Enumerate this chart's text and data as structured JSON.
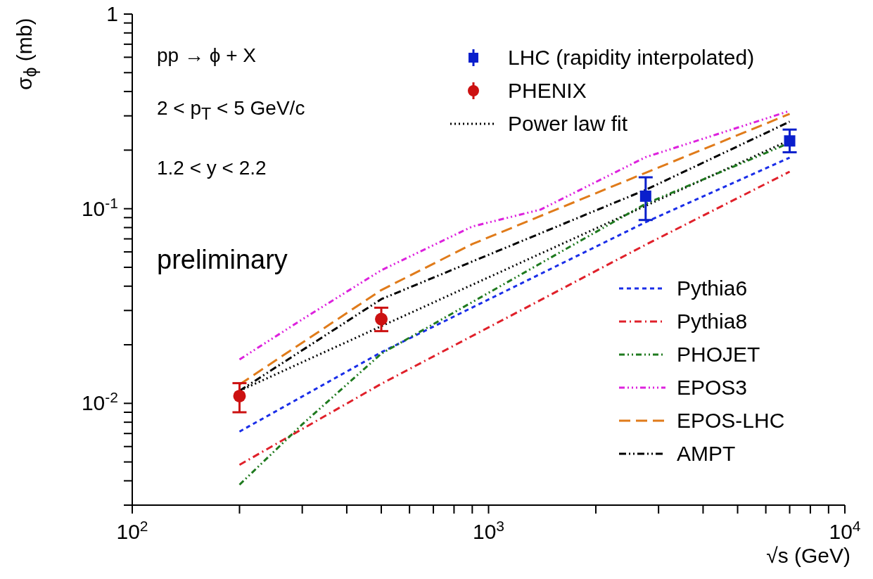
{
  "chart_data": {
    "type": "line",
    "xlabel": "√s (GeV)",
    "ylabel": "σ$_{ϕ}$ (mb)",
    "log": "xy",
    "grid": false,
    "legend": "top right",
    "xlim": [
      100,
      10000
    ],
    "ylim": [
      0.003,
      1
    ],
    "xticks": [
      {
        "value": 100,
        "label": "10$^{2}$"
      },
      {
        "value": 200,
        "label": null
      },
      {
        "value": 300,
        "label": null
      },
      {
        "value": 400,
        "label": null
      },
      {
        "value": 500,
        "label": null
      },
      {
        "value": 600,
        "label": null
      },
      {
        "value": 700,
        "label": null
      },
      {
        "value": 800,
        "label": null
      },
      {
        "value": 900,
        "label": null
      },
      {
        "value": 1000,
        "label": "10$^{3}$"
      },
      {
        "value": 2000,
        "label": null
      },
      {
        "value": 3000,
        "label": null
      },
      {
        "value": 4000,
        "label": null
      },
      {
        "value": 5000,
        "label": null
      },
      {
        "value": 6000,
        "label": null
      },
      {
        "value": 7000,
        "label": null
      },
      {
        "value": 8000,
        "label": null
      },
      {
        "value": 9000,
        "label": null
      },
      {
        "value": 10000,
        "label": "10$^{4}$"
      }
    ],
    "yticks": [
      {
        "value": 0.003,
        "label": null
      },
      {
        "value": 0.004,
        "label": null
      },
      {
        "value": 0.005,
        "label": null
      },
      {
        "value": 0.006,
        "label": null
      },
      {
        "value": 0.007,
        "label": null
      },
      {
        "value": 0.008,
        "label": null
      },
      {
        "value": 0.009,
        "label": null
      },
      {
        "value": 0.01,
        "label": "10$^{-2}$"
      },
      {
        "value": 0.02,
        "label": null
      },
      {
        "value": 0.03,
        "label": null
      },
      {
        "value": 0.04,
        "label": null
      },
      {
        "value": 0.05,
        "label": null
      },
      {
        "value": 0.06,
        "label": null
      },
      {
        "value": 0.07,
        "label": null
      },
      {
        "value": 0.08,
        "label": null
      },
      {
        "value": 0.09,
        "label": null
      },
      {
        "value": 0.1,
        "label": "10$^{-1}$"
      },
      {
        "value": 0.2,
        "label": null
      },
      {
        "value": 0.3,
        "label": null
      },
      {
        "value": 0.4,
        "label": null
      },
      {
        "value": 0.5,
        "label": null
      },
      {
        "value": 0.6,
        "label": null
      },
      {
        "value": 0.7,
        "label": null
      },
      {
        "value": 0.8,
        "label": null
      },
      {
        "value": 0.9,
        "label": null
      },
      1
    ],
    "annotations": [
      "pp → ϕ + X",
      "2 < p$_{T}$ < 5 GeV/c",
      "1.2 < y < 2.2",
      "preliminary"
    ],
    "series": [
      {
        "name": "LHC (rapidity interpolated)",
        "type": "scatter",
        "marker": "square",
        "color": "#0a1fcc",
        "x": [
          2760,
          7000
        ],
        "values": [
          0.116,
          0.223
        ],
        "errors": [
          [
            0.0875,
            0.145
          ],
          [
            0.195,
            0.255
          ]
        ]
      },
      {
        "name": "PHENIX",
        "type": "scatter",
        "marker": "circle",
        "color": "#cc1111",
        "x": [
          200,
          500
        ],
        "values": [
          0.0109,
          0.0271
        ],
        "errors": [
          [
            0.009,
            0.0127
          ],
          [
            0.0235,
            0.031
          ]
        ]
      },
      {
        "name": "Power law fit",
        "line_style": "dotted",
        "color": "#000000",
        "x": [
          200,
          7000
        ],
        "values": [
          0.0116,
          0.225
        ]
      },
      {
        "name": "Pythia6",
        "line_style": "dashed",
        "color": "#1a2ee8",
        "x": [
          200,
          500,
          2760,
          7000
        ],
        "values": [
          0.00716,
          0.0183,
          0.0853,
          0.183
        ]
      },
      {
        "name": "Pythia8",
        "line_style": "dashed",
        "color": "#e0202a",
        "x": [
          200,
          500,
          2760,
          7000
        ],
        "values": [
          0.00483,
          0.0126,
          0.0653,
          0.155
        ]
      },
      {
        "name": "PHOJET",
        "line_style": "dashed",
        "color": "#1f7a1f",
        "x": [
          200,
          300,
          500,
          2760,
          7000
        ],
        "values": [
          0.00382,
          0.0078,
          0.018,
          0.106,
          0.218
        ]
      },
      {
        "name": "EPOS3",
        "line_style": "dashed",
        "color": "#dd22dd",
        "x": [
          200,
          300,
          500,
          900,
          1400,
          2760,
          7000
        ],
        "values": [
          0.0168,
          0.027,
          0.0483,
          0.081,
          0.099,
          0.184,
          0.318
        ]
      },
      {
        "name": "EPOS-LHC",
        "line_style": "dashed",
        "color": "#e07b1a",
        "x": [
          200,
          500,
          900,
          2760,
          7000
        ],
        "values": [
          0.0125,
          0.0382,
          0.0658,
          0.153,
          0.307
        ]
      },
      {
        "name": "AMPT",
        "line_style": "dashed",
        "color": "#000000",
        "x": [
          200,
          500,
          2760,
          7000
        ],
        "values": [
          0.0116,
          0.0343,
          0.125,
          0.28
        ]
      }
    ]
  }
}
